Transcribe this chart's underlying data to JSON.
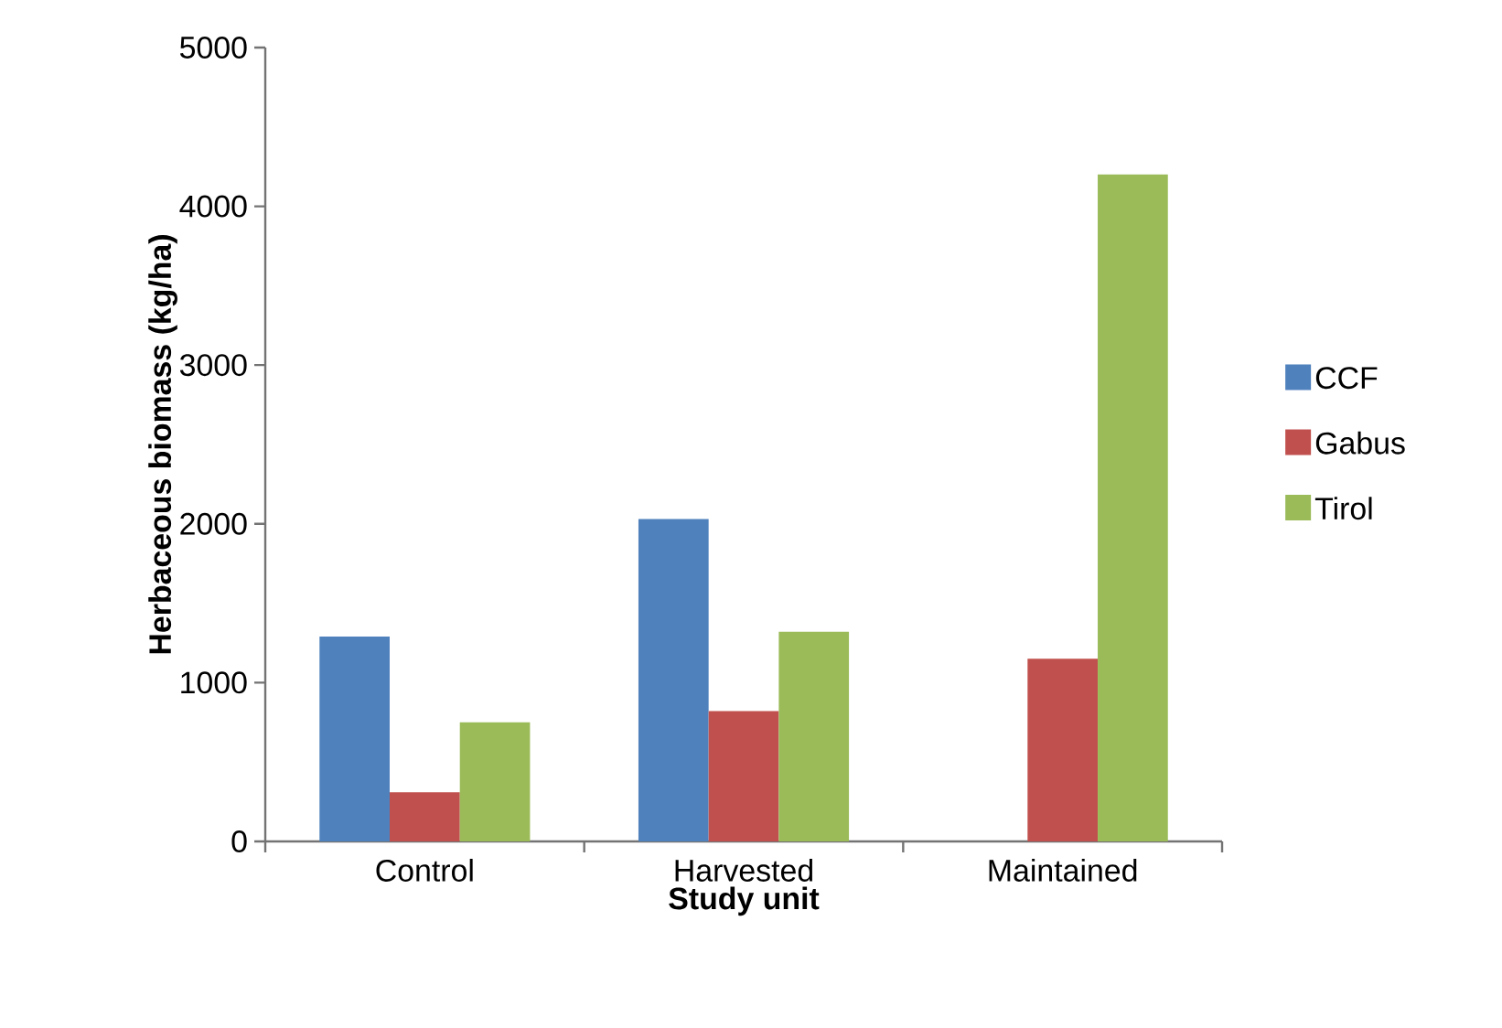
{
  "chart_data": {
    "type": "bar",
    "xlabel": "Study unit",
    "ylabel": "Herbaceous biomass (kg/ha)",
    "categories": [
      "Control",
      "Harvested",
      "Maintained"
    ],
    "series": [
      {
        "name": "CCF",
        "color": "#4f81bd",
        "values": [
          1290,
          2030,
          null
        ]
      },
      {
        "name": "Gabus",
        "color": "#c0504d",
        "values": [
          310,
          820,
          1150
        ]
      },
      {
        "name": "Tirol",
        "color": "#9bbb59",
        "values": [
          750,
          1320,
          4200
        ]
      }
    ],
    "ylim": [
      0,
      5000
    ],
    "yticks": [
      0,
      1000,
      2000,
      3000,
      4000,
      5000
    ],
    "grid": false,
    "legend": "right"
  }
}
